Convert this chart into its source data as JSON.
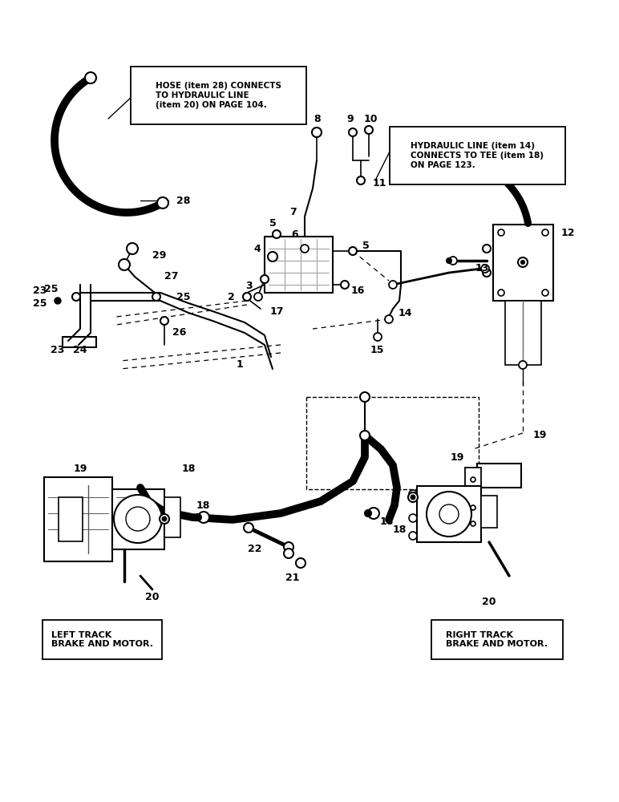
{
  "bg_color": "#ffffff",
  "figsize": [
    7.72,
    10.0
  ],
  "dpi": 100,
  "box1_text": "HOSE (item 28) CONNECTS\nTO HYDRAULIC LINE\n(item 20) ON PAGE 104.",
  "box2_text": "HYDRAULIC LINE (item 14)\nCONNECTS TO TEE (item 18)\nON PAGE 123.",
  "box3_text": "LEFT TRACK\nBRAKE AND MOTOR.",
  "box4_text": "RIGHT TRACK\nBRAKE AND MOTOR."
}
